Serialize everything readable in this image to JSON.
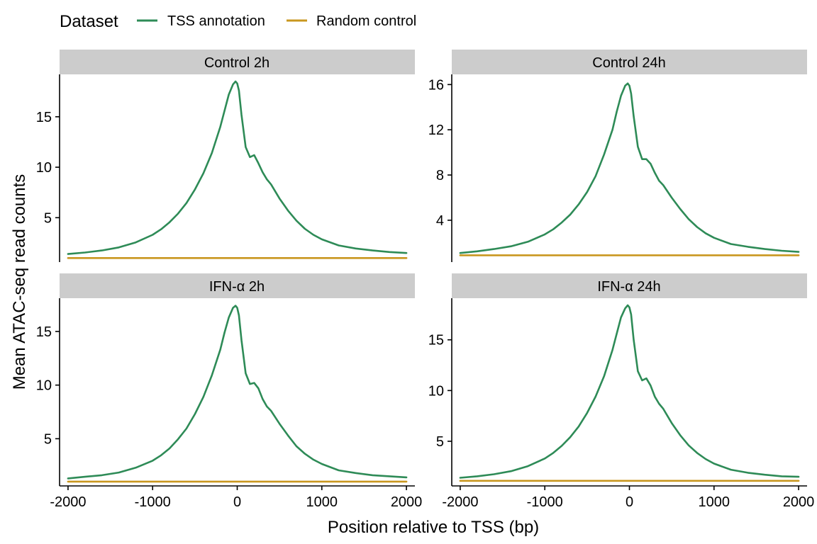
{
  "legend": {
    "title": "Dataset",
    "items": [
      {
        "label": "TSS annotation",
        "color": "#2e8b57"
      },
      {
        "label": "Random control",
        "color": "#c9971f"
      }
    ]
  },
  "axes": {
    "xlabel": "Position relative to TSS (bp)",
    "ylabel": "Mean ATAC-seq read counts"
  },
  "chart_data": [
    {
      "type": "line",
      "panel": "Control 2h",
      "xlim": [
        -2100,
        2100
      ],
      "ylim": [
        0.6,
        19.2
      ],
      "xticks": [
        -2000,
        -1000,
        0,
        1000,
        2000
      ],
      "xtick_labels": [
        "-2000",
        "-1000",
        "0",
        "1000",
        "2000"
      ],
      "yticks": [
        5,
        10,
        15
      ],
      "ytick_labels": [
        "5",
        "10",
        "15"
      ],
      "series": [
        {
          "name": "TSS annotation",
          "color": "#2e8b57",
          "x": [
            -2000,
            -1800,
            -1600,
            -1400,
            -1200,
            -1000,
            -900,
            -800,
            -700,
            -600,
            -500,
            -400,
            -300,
            -200,
            -150,
            -100,
            -50,
            -20,
            0,
            20,
            50,
            100,
            150,
            200,
            250,
            300,
            350,
            400,
            500,
            600,
            700,
            800,
            900,
            1000,
            1200,
            1400,
            1600,
            1800,
            2000
          ],
          "y": [
            1.4,
            1.55,
            1.75,
            2.05,
            2.55,
            3.3,
            3.85,
            4.55,
            5.4,
            6.45,
            7.8,
            9.4,
            11.4,
            14.0,
            15.6,
            17.2,
            18.2,
            18.5,
            18.3,
            17.6,
            15.2,
            12.0,
            11.0,
            11.2,
            10.4,
            9.5,
            8.8,
            8.3,
            6.9,
            5.7,
            4.7,
            3.9,
            3.3,
            2.85,
            2.25,
            1.95,
            1.75,
            1.6,
            1.5
          ]
        },
        {
          "name": "Random control",
          "color": "#c9971f",
          "x": [
            -2000,
            -1000,
            0,
            1000,
            2000
          ],
          "y": [
            1.0,
            1.0,
            1.0,
            1.0,
            1.0
          ]
        }
      ]
    },
    {
      "type": "line",
      "panel": "Control 24h",
      "xlim": [
        -2100,
        2100
      ],
      "ylim": [
        0.3,
        16.9
      ],
      "xticks": [
        -2000,
        -1000,
        0,
        1000,
        2000
      ],
      "xtick_labels": [
        "-2000",
        "-1000",
        "0",
        "1000",
        "2000"
      ],
      "yticks": [
        4,
        8,
        12,
        16
      ],
      "ytick_labels": [
        "4",
        "8",
        "12",
        "16"
      ],
      "series": [
        {
          "name": "TSS annotation",
          "color": "#2e8b57",
          "x": [
            -2000,
            -1800,
            -1600,
            -1400,
            -1200,
            -1000,
            -900,
            -800,
            -700,
            -600,
            -500,
            -400,
            -300,
            -200,
            -150,
            -100,
            -50,
            -20,
            0,
            20,
            50,
            100,
            150,
            200,
            250,
            300,
            350,
            400,
            500,
            600,
            700,
            800,
            900,
            1000,
            1200,
            1400,
            1600,
            1800,
            2000
          ],
          "y": [
            1.1,
            1.25,
            1.45,
            1.7,
            2.1,
            2.75,
            3.2,
            3.8,
            4.5,
            5.4,
            6.5,
            7.9,
            9.8,
            12.0,
            13.6,
            15.0,
            15.9,
            16.1,
            15.9,
            15.2,
            13.2,
            10.5,
            9.4,
            9.4,
            9.0,
            8.2,
            7.5,
            7.1,
            6.0,
            5.0,
            4.1,
            3.4,
            2.85,
            2.45,
            1.9,
            1.65,
            1.45,
            1.3,
            1.2
          ]
        },
        {
          "name": "Random control",
          "color": "#c9971f",
          "x": [
            -2000,
            -1000,
            0,
            1000,
            2000
          ],
          "y": [
            0.9,
            0.9,
            0.9,
            0.9,
            0.9
          ]
        }
      ]
    },
    {
      "type": "line",
      "panel": "IFN-α 2h",
      "xlim": [
        -2100,
        2100
      ],
      "ylim": [
        0.6,
        18.1
      ],
      "xticks": [
        -2000,
        -1000,
        0,
        1000,
        2000
      ],
      "xtick_labels": [
        "-2000",
        "-1000",
        "0",
        "1000",
        "2000"
      ],
      "yticks": [
        5,
        10,
        15
      ],
      "ytick_labels": [
        "5",
        "10",
        "15"
      ],
      "series": [
        {
          "name": "TSS annotation",
          "color": "#2e8b57",
          "x": [
            -2000,
            -1800,
            -1600,
            -1400,
            -1200,
            -1000,
            -900,
            -800,
            -700,
            -600,
            -500,
            -400,
            -300,
            -200,
            -150,
            -100,
            -50,
            -20,
            0,
            20,
            50,
            100,
            150,
            200,
            250,
            300,
            350,
            400,
            500,
            600,
            700,
            800,
            900,
            1000,
            1200,
            1400,
            1600,
            1800,
            2000
          ],
          "y": [
            1.3,
            1.45,
            1.6,
            1.85,
            2.3,
            2.95,
            3.45,
            4.1,
            4.95,
            5.95,
            7.3,
            8.9,
            10.9,
            13.3,
            14.9,
            16.3,
            17.2,
            17.4,
            17.2,
            16.5,
            14.2,
            11.1,
            10.1,
            10.2,
            9.7,
            8.7,
            8.0,
            7.6,
            6.4,
            5.3,
            4.3,
            3.6,
            3.05,
            2.65,
            2.05,
            1.8,
            1.6,
            1.5,
            1.4
          ]
        },
        {
          "name": "Random control",
          "color": "#c9971f",
          "x": [
            -2000,
            -1000,
            0,
            1000,
            2000
          ],
          "y": [
            1.0,
            1.0,
            1.0,
            1.0,
            1.0
          ]
        }
      ]
    },
    {
      "type": "line",
      "panel": "IFN-α 24h",
      "xlim": [
        -2100,
        2100
      ],
      "ylim": [
        0.6,
        19.1
      ],
      "xticks": [
        -2000,
        -1000,
        0,
        1000,
        2000
      ],
      "xtick_labels": [
        "-2000",
        "-1000",
        "0",
        "1000",
        "2000"
      ],
      "yticks": [
        5,
        10,
        15
      ],
      "ytick_labels": [
        "5",
        "10",
        "15"
      ],
      "series": [
        {
          "name": "TSS annotation",
          "color": "#2e8b57",
          "x": [
            -2000,
            -1800,
            -1600,
            -1400,
            -1200,
            -1000,
            -900,
            -800,
            -700,
            -600,
            -500,
            -400,
            -300,
            -200,
            -150,
            -100,
            -50,
            -20,
            0,
            20,
            50,
            100,
            150,
            200,
            250,
            300,
            350,
            400,
            500,
            600,
            700,
            800,
            900,
            1000,
            1200,
            1400,
            1600,
            1800,
            2000
          ],
          "y": [
            1.4,
            1.55,
            1.75,
            2.05,
            2.55,
            3.3,
            3.85,
            4.55,
            5.4,
            6.45,
            7.8,
            9.4,
            11.4,
            14.0,
            15.6,
            17.2,
            18.1,
            18.4,
            18.2,
            17.5,
            15.0,
            11.9,
            11.0,
            11.2,
            10.5,
            9.4,
            8.7,
            8.2,
            6.8,
            5.6,
            4.6,
            3.85,
            3.25,
            2.8,
            2.2,
            1.9,
            1.7,
            1.55,
            1.5
          ]
        },
        {
          "name": "Random control",
          "color": "#c9971f",
          "x": [
            -2000,
            -1000,
            0,
            1000,
            2000
          ],
          "y": [
            1.1,
            1.1,
            1.1,
            1.1,
            1.1
          ]
        }
      ]
    }
  ]
}
